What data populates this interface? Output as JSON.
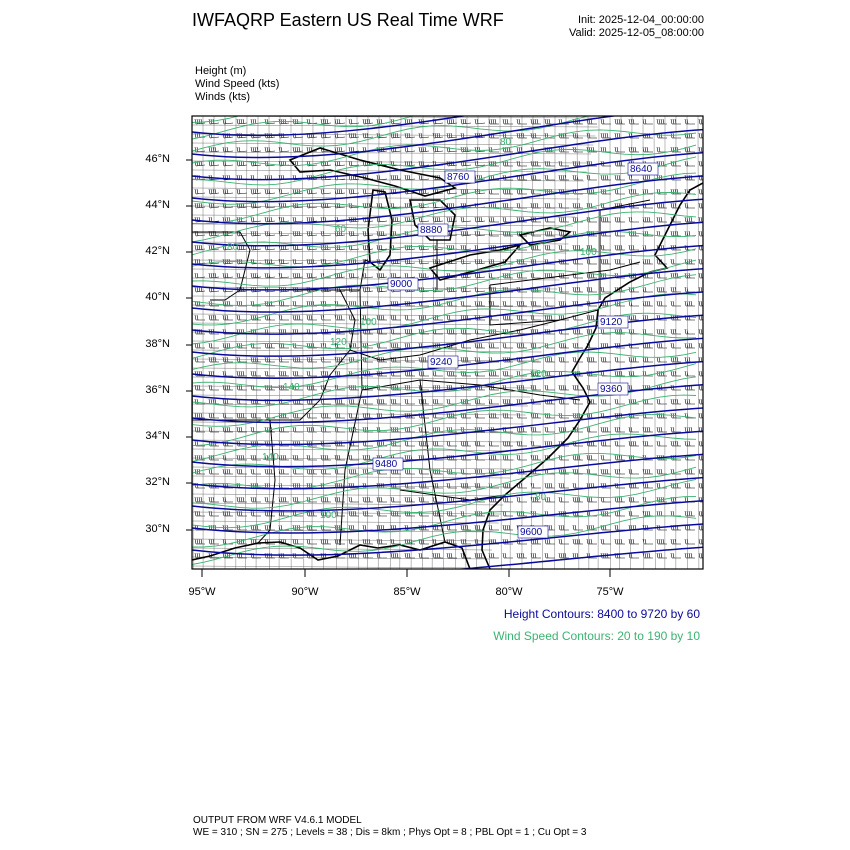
{
  "header": {
    "title": "IWFAQRP Eastern US Real Time WRF",
    "init": "Init: 2025-12-04_00:00:00",
    "valid": "Valid: 2025-12-05_08:00:00"
  },
  "fields": [
    "Height   (m)",
    "Wind Speed   (kts)",
    "Winds   (kts)"
  ],
  "map": {
    "lat_ticks": [
      "46°N",
      "44°N",
      "42°N",
      "40°N",
      "38°N",
      "36°N",
      "34°N",
      "32°N",
      "30°N"
    ],
    "lon_ticks": [
      "95°W",
      "90°W",
      "85°W",
      "80°W",
      "75°W"
    ],
    "height_labels": [
      "8640",
      "8760",
      "8880",
      "9000",
      "9120",
      "9240",
      "9360",
      "9480",
      "9600"
    ],
    "speed_labels": [
      "80",
      "60",
      "80",
      "100",
      "100",
      "120",
      "140",
      "120",
      "140",
      "100",
      "80"
    ],
    "colors": {
      "height": "#0a0a9a",
      "speed": "#3cb371",
      "barbs": "#000000"
    }
  },
  "legend": {
    "height": "Height Contours: 8400 to 9720 by 60",
    "speed": "Wind Speed Contours: 20 to 190 by 10"
  },
  "footer": {
    "line1": "OUTPUT FROM WRF V4.6.1 MODEL",
    "line2": "WE = 310 ; SN = 275 ; Levels = 38 ; Dis = 8km ; Phys Opt = 8 ; PBL Opt = 1 ; Cu Opt = 3"
  }
}
